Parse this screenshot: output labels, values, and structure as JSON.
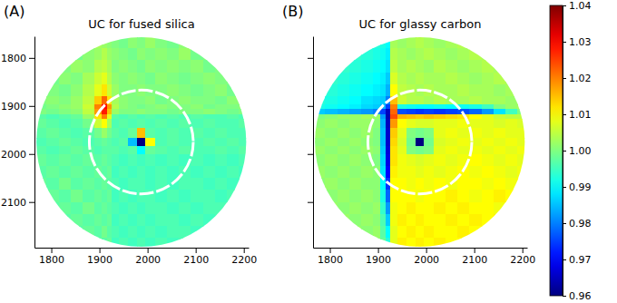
{
  "chart_data": [
    {
      "type": "heatmap",
      "label": "(A)",
      "title": "UC for fused silica",
      "xlim": [
        1765,
        2210
      ],
      "ylim": [
        2195,
        1755
      ],
      "xticks": [
        1800,
        1900,
        2000,
        2100,
        2200
      ],
      "yticks": [
        1800,
        1900,
        2000,
        2100
      ],
      "x_edges": [
        1765,
        1790,
        1815,
        1840,
        1865,
        1890,
        1905,
        1915,
        1925,
        1940,
        1960,
        1979,
        1995,
        2015,
        2040,
        2065,
        2090,
        2115,
        2140,
        2165,
        2190,
        2210
      ],
      "y_edges": [
        1755,
        1780,
        1805,
        1830,
        1855,
        1880,
        1897,
        1907,
        1917,
        1927,
        1945,
        1967,
        1983,
        2000,
        2025,
        2050,
        2075,
        2100,
        2125,
        2150,
        2175,
        2195
      ],
      "detector_circle": {
        "cx": 1987,
        "cy": 1975,
        "r": 218
      },
      "dashed_circle": {
        "cx": 1987,
        "cy": 1975,
        "r": 108
      },
      "cells": [
        [
          1.0,
          1.002,
          0.999,
          1.001,
          1.0,
          1.003,
          1.002,
          1.001,
          1.0,
          0.999,
          1.001,
          1.0,
          1.002,
          1.0,
          0.999,
          1.001,
          1.0,
          1.002,
          1.0,
          0.999,
          1.0
        ],
        [
          1.001,
          1.0,
          1.002,
          0.999,
          1.001,
          1.002,
          1.004,
          1.002,
          1.001,
          1.0,
          0.999,
          1.001,
          1.0,
          1.001,
          1.0,
          1.002,
          0.999,
          1.0,
          1.001,
          1.0,
          1.001
        ],
        [
          0.999,
          1.001,
          1.0,
          1.002,
          1.001,
          1.004,
          1.005,
          1.003,
          1.0,
          1.001,
          1.0,
          0.999,
          1.001,
          1.0,
          1.001,
          1.0,
          1.001,
          0.999,
          1.0,
          1.002,
          1.0
        ],
        [
          1.0,
          0.999,
          1.001,
          1.0,
          1.003,
          1.006,
          1.008,
          1.004,
          1.001,
          1.0,
          1.001,
          1.0,
          0.999,
          1.001,
          1.0,
          0.999,
          1.0,
          1.001,
          1.0,
          1.0,
          0.999
        ],
        [
          1.001,
          1.0,
          0.999,
          1.001,
          1.004,
          1.008,
          1.012,
          1.006,
          1.002,
          1.0,
          1.0,
          1.001,
          1.0,
          1.0,
          1.001,
          1.0,
          0.999,
          1.0,
          1.001,
          0.999,
          1.0
        ],
        [
          1.0,
          1.001,
          1.0,
          1.002,
          1.005,
          1.014,
          1.022,
          1.012,
          1.003,
          1.001,
          1.0,
          1.0,
          1.001,
          0.999,
          1.0,
          1.001,
          1.0,
          1.0,
          0.999,
          1.001,
          1.0
        ],
        [
          0.999,
          1.0,
          1.001,
          1.002,
          1.006,
          1.02,
          1.03,
          1.018,
          1.004,
          1.001,
          1.0,
          0.999,
          1.0,
          1.001,
          1.0,
          1.0,
          1.001,
          0.999,
          1.0,
          1.0,
          1.001
        ],
        [
          1.0,
          0.999,
          1.0,
          1.001,
          1.005,
          1.018,
          1.028,
          1.015,
          1.002,
          1.0,
          1.0,
          1.001,
          1.0,
          1.0,
          0.999,
          1.0,
          1.0,
          1.001,
          1.0,
          0.999,
          1.0
        ],
        [
          0.997,
          0.996,
          0.997,
          0.998,
          1.002,
          1.012,
          1.02,
          1.008,
          0.997,
          0.996,
          0.997,
          0.996,
          0.997,
          0.996,
          0.997,
          0.996,
          0.997,
          0.996,
          0.996,
          0.997,
          0.996
        ],
        [
          0.998,
          0.997,
          0.996,
          0.997,
          0.999,
          1.006,
          1.01,
          1.003,
          0.996,
          0.997,
          0.996,
          0.997,
          0.996,
          0.997,
          0.996,
          0.997,
          0.996,
          0.997,
          0.996,
          0.996,
          0.997
        ],
        [
          0.997,
          0.998,
          0.997,
          0.996,
          0.997,
          0.999,
          1.002,
          0.999,
          0.997,
          0.996,
          0.998,
          1.015,
          0.997,
          0.996,
          0.997,
          0.996,
          0.997,
          0.996,
          0.997,
          0.996,
          0.996
        ],
        [
          0.996,
          0.997,
          0.998,
          0.997,
          0.996,
          0.997,
          0.998,
          0.997,
          0.996,
          0.997,
          0.985,
          0.96,
          1.01,
          0.996,
          0.997,
          0.996,
          0.996,
          0.997,
          0.996,
          0.997,
          0.996
        ],
        [
          0.997,
          0.996,
          0.997,
          0.998,
          0.997,
          0.996,
          0.997,
          0.997,
          0.997,
          0.996,
          0.997,
          0.99,
          0.998,
          0.997,
          0.996,
          0.997,
          0.996,
          0.996,
          0.997,
          0.996,
          0.997
        ],
        [
          0.998,
          0.997,
          0.998,
          0.997,
          0.998,
          0.997,
          0.998,
          0.997,
          0.996,
          0.995,
          0.996,
          0.995,
          0.996,
          0.995,
          0.996,
          0.995,
          0.996,
          0.995,
          0.996,
          0.995,
          0.996
        ],
        [
          0.997,
          0.998,
          0.997,
          0.998,
          0.997,
          0.998,
          0.997,
          0.998,
          0.995,
          0.996,
          0.995,
          0.996,
          0.995,
          0.996,
          0.995,
          0.996,
          0.995,
          0.996,
          0.995,
          0.996,
          0.995
        ],
        [
          0.998,
          0.997,
          0.999,
          0.997,
          0.998,
          0.997,
          0.998,
          0.997,
          0.996,
          0.995,
          0.996,
          0.996,
          0.995,
          0.996,
          0.995,
          0.996,
          0.996,
          0.995,
          0.996,
          0.995,
          0.996
        ],
        [
          0.997,
          0.998,
          0.997,
          0.999,
          0.997,
          0.998,
          0.997,
          0.998,
          0.995,
          0.996,
          0.995,
          0.996,
          0.996,
          0.995,
          0.996,
          0.995,
          0.996,
          0.996,
          0.995,
          0.996,
          0.995
        ],
        [
          0.998,
          0.997,
          0.998,
          0.997,
          0.999,
          0.997,
          0.998,
          0.997,
          0.996,
          0.995,
          0.996,
          0.995,
          0.996,
          0.996,
          0.995,
          0.996,
          0.995,
          0.996,
          0.996,
          0.995,
          0.996
        ],
        [
          0.997,
          0.999,
          0.997,
          0.998,
          0.997,
          0.998,
          0.997,
          0.998,
          0.995,
          0.996,
          0.995,
          0.996,
          0.995,
          0.996,
          0.996,
          0.995,
          0.996,
          0.995,
          0.996,
          0.996,
          0.995
        ],
        [
          0.998,
          0.997,
          0.998,
          0.997,
          0.998,
          0.997,
          0.999,
          0.997,
          0.996,
          0.995,
          0.996,
          0.995,
          0.996,
          0.995,
          0.996,
          0.996,
          0.995,
          0.996,
          0.995,
          0.996,
          0.996
        ],
        [
          0.997,
          0.998,
          0.997,
          0.998,
          0.997,
          0.998,
          0.997,
          0.998,
          0.995,
          0.996,
          0.995,
          0.996,
          0.995,
          0.996,
          0.995,
          0.996,
          0.996,
          0.995,
          0.996,
          0.995,
          0.996
        ]
      ]
    },
    {
      "type": "heatmap",
      "label": "(B)",
      "title": "UC for glassy carbon",
      "tick_labels": "x",
      "xlim": [
        1765,
        2210
      ],
      "ylim": [
        2195,
        1755
      ],
      "xticks": [
        1800,
        1900,
        2000,
        2100,
        2200
      ],
      "yticks": [
        1800,
        1900,
        2000,
        2100
      ],
      "x_edges": [
        1765,
        1790,
        1815,
        1840,
        1865,
        1890,
        1905,
        1915,
        1925,
        1940,
        1960,
        1979,
        1995,
        2015,
        2040,
        2065,
        2090,
        2115,
        2140,
        2165,
        2190,
        2210
      ],
      "y_edges": [
        1755,
        1780,
        1805,
        1830,
        1855,
        1880,
        1897,
        1907,
        1917,
        1927,
        1945,
        1967,
        1983,
        2000,
        2025,
        2050,
        2075,
        2100,
        2125,
        2150,
        2175,
        2195
      ],
      "detector_circle": {
        "cx": 1987,
        "cy": 1975,
        "r": 218
      },
      "dashed_circle": {
        "cx": 1987,
        "cy": 1975,
        "r": 108
      },
      "colorbar": {
        "range": [
          0.96,
          1.04
        ],
        "ticks": [
          0.96,
          0.97,
          0.98,
          0.99,
          {
            "value": 1,
            "label": "1.00"
          },
          1.01,
          1.02,
          1.03,
          1.04
        ]
      },
      "cells": [
        [
          0.994,
          0.993,
          0.994,
          0.993,
          0.994,
          0.993,
          0.992,
          0.99,
          1.003,
          1.002,
          1.003,
          1.004,
          1.003,
          1.002,
          1.003,
          1.004,
          1.003,
          1.002,
          1.003,
          1.004,
          1.003
        ],
        [
          0.993,
          0.994,
          0.993,
          0.994,
          0.993,
          0.992,
          0.991,
          0.989,
          1.004,
          1.003,
          1.002,
          1.003,
          1.004,
          1.003,
          1.002,
          1.003,
          1.004,
          1.003,
          1.002,
          1.003,
          1.004
        ],
        [
          0.994,
          0.993,
          0.994,
          0.993,
          0.992,
          0.991,
          0.99,
          0.988,
          1.005,
          1.003,
          1.004,
          1.003,
          1.002,
          1.004,
          1.003,
          1.002,
          1.003,
          1.004,
          1.003,
          1.002,
          1.003
        ],
        [
          0.993,
          0.994,
          0.993,
          0.992,
          0.991,
          0.99,
          0.989,
          0.986,
          1.007,
          1.004,
          1.003,
          1.004,
          1.003,
          1.003,
          1.004,
          1.003,
          1.002,
          1.003,
          1.004,
          1.003,
          1.002
        ],
        [
          0.994,
          0.993,
          0.992,
          0.991,
          0.99,
          0.989,
          0.988,
          0.984,
          1.01,
          1.005,
          1.004,
          1.003,
          1.004,
          1.003,
          1.003,
          1.004,
          1.003,
          1.003,
          1.002,
          1.003,
          1.003
        ],
        [
          0.993,
          0.992,
          0.991,
          0.99,
          0.988,
          0.987,
          0.986,
          0.98,
          1.015,
          1.006,
          1.004,
          1.004,
          1.003,
          1.004,
          1.003,
          1.003,
          1.004,
          1.003,
          1.003,
          1.002,
          1.003
        ],
        [
          0.992,
          0.991,
          0.99,
          0.989,
          0.987,
          0.986,
          0.984,
          0.975,
          1.02,
          0.992,
          0.991,
          0.99,
          0.99,
          0.991,
          0.99,
          0.991,
          0.992,
          0.995,
          1.0,
          1.002,
          1.003
        ],
        [
          0.986,
          0.985,
          0.984,
          0.983,
          0.982,
          0.98,
          0.975,
          0.965,
          1.022,
          0.976,
          0.975,
          0.974,
          0.975,
          0.974,
          0.975,
          0.976,
          0.978,
          0.982,
          0.988,
          0.995,
          1.0
        ],
        [
          1.0,
          1.001,
          1.002,
          1.002,
          1.003,
          1.002,
          0.982,
          0.964,
          1.024,
          1.016,
          1.015,
          1.014,
          1.015,
          1.014,
          1.013,
          1.012,
          1.01,
          1.008,
          1.006,
          1.005,
          1.005
        ],
        [
          1.001,
          1.002,
          1.001,
          1.002,
          1.002,
          1.001,
          0.984,
          0.965,
          1.018,
          1.01,
          1.008,
          1.007,
          1.007,
          1.008,
          1.008,
          1.009,
          1.008,
          1.008,
          1.007,
          1.008,
          1.007
        ],
        [
          1.002,
          1.001,
          1.002,
          1.001,
          1.002,
          1.0,
          0.985,
          0.966,
          1.014,
          1.008,
          1.0,
          0.999,
          1.0,
          1.008,
          1.009,
          1.008,
          1.009,
          1.008,
          1.009,
          1.008,
          1.008
        ],
        [
          1.001,
          1.002,
          1.001,
          1.002,
          1.001,
          1.0,
          0.985,
          0.966,
          1.013,
          1.007,
          0.999,
          0.96,
          0.999,
          1.007,
          1.008,
          1.009,
          1.008,
          1.009,
          1.008,
          1.009,
          1.008
        ],
        [
          1.002,
          1.001,
          1.002,
          1.001,
          1.002,
          1.001,
          0.986,
          0.967,
          1.012,
          1.008,
          1.0,
          0.999,
          1.0,
          1.008,
          1.009,
          1.008,
          1.009,
          1.008,
          1.009,
          1.008,
          1.009
        ],
        [
          1.001,
          1.002,
          1.001,
          1.002,
          1.001,
          1.0,
          0.987,
          0.968,
          1.012,
          1.009,
          1.008,
          1.007,
          1.008,
          1.009,
          1.008,
          1.009,
          1.01,
          1.009,
          1.008,
          1.009,
          1.008
        ],
        [
          1.002,
          1.001,
          1.002,
          1.001,
          1.002,
          1.001,
          0.988,
          0.97,
          1.011,
          1.009,
          1.009,
          1.008,
          1.009,
          1.008,
          1.009,
          1.01,
          1.009,
          1.01,
          1.009,
          1.008,
          1.009
        ],
        [
          1.001,
          1.002,
          1.001,
          1.002,
          1.001,
          1.001,
          0.99,
          0.974,
          1.01,
          1.01,
          1.009,
          1.01,
          1.009,
          1.01,
          1.009,
          1.01,
          1.01,
          1.009,
          1.01,
          1.009,
          1.01
        ],
        [
          1.002,
          1.001,
          1.002,
          1.001,
          1.002,
          1.001,
          0.992,
          0.978,
          1.01,
          1.01,
          1.01,
          1.009,
          1.01,
          1.01,
          1.011,
          1.01,
          1.009,
          1.01,
          1.011,
          1.01,
          1.009
        ],
        [
          1.001,
          1.002,
          1.001,
          1.002,
          1.001,
          1.002,
          0.994,
          0.982,
          1.009,
          1.01,
          1.011,
          1.01,
          1.01,
          1.011,
          1.01,
          1.011,
          1.01,
          1.01,
          1.009,
          1.01,
          1.011
        ],
        [
          1.002,
          1.001,
          1.002,
          1.001,
          1.002,
          1.001,
          0.996,
          0.986,
          1.009,
          1.011,
          1.01,
          1.011,
          1.01,
          1.01,
          1.011,
          1.01,
          1.011,
          1.01,
          1.011,
          1.01,
          1.01
        ],
        [
          1.001,
          1.002,
          1.001,
          1.002,
          1.001,
          1.002,
          0.997,
          0.99,
          1.008,
          1.01,
          1.011,
          1.01,
          1.011,
          1.01,
          1.01,
          1.011,
          1.01,
          1.011,
          1.01,
          1.011,
          1.01
        ],
        [
          1.002,
          1.001,
          1.002,
          1.001,
          1.002,
          1.001,
          0.998,
          0.993,
          1.008,
          1.011,
          1.01,
          1.011,
          1.01,
          1.011,
          1.01,
          1.01,
          1.011,
          1.01,
          1.011,
          1.01,
          1.011
        ]
      ]
    }
  ]
}
